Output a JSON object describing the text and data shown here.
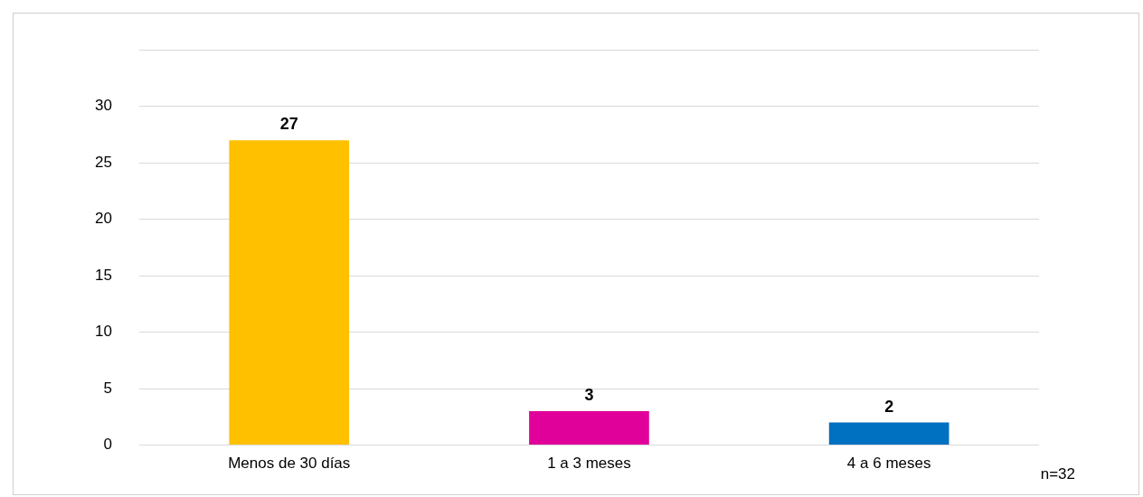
{
  "chart_data": {
    "type": "bar",
    "categories": [
      "Menos de 30 días",
      "1 a 3 meses",
      "4 a 6 meses"
    ],
    "values": [
      27,
      3,
      2
    ],
    "colors": [
      "#ffc000",
      "#e0009a",
      "#0070c0"
    ],
    "ylim": [
      0,
      35
    ],
    "yticks": [
      0,
      5,
      10,
      15,
      20,
      25,
      30,
      {
        "value": 35,
        "label": null
      }
    ],
    "grid": "y",
    "data_labels": true,
    "annotations": [
      "n=32"
    ]
  }
}
